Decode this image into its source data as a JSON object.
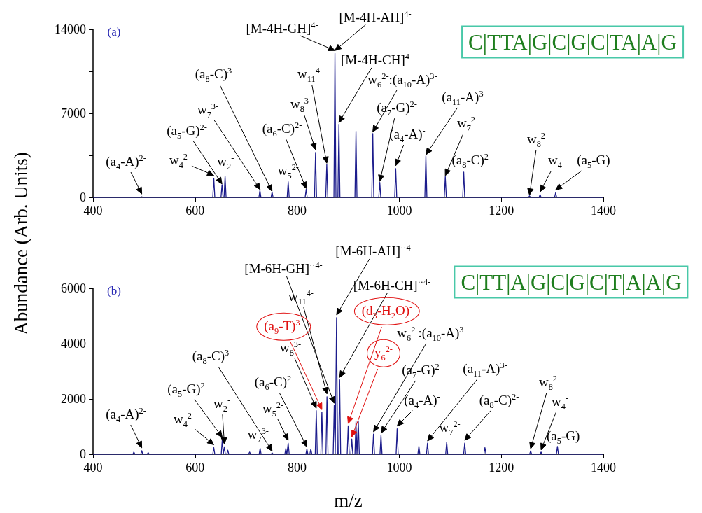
{
  "chart_data": [
    {
      "type": "line",
      "title": "(a)",
      "ylabel": "Abundance (Arb. Units)",
      "marker": "none",
      "grid": false,
      "x": [
        400,
        493.5,
        495.5,
        497.5,
        634.6,
        636.6,
        638.6,
        650.7,
        652.7,
        654.7,
        656.7,
        658.7,
        660.7,
        725,
        727,
        729,
        748.8,
        750.8,
        752.8,
        780.4,
        782.4,
        784.4,
        815.6,
        817.6,
        819.6,
        834,
        836,
        838,
        856,
        858,
        860,
        872,
        874,
        876,
        879.8,
        881.8,
        883.8,
        913.2,
        915.2,
        917.2,
        946.2,
        948.2,
        950.2,
        959.9,
        961.9,
        963.9,
        991.1,
        993.1,
        995.1,
        1050.2,
        1052.2,
        1054.2,
        1088.3,
        1090.3,
        1092.3,
        1124.4,
        1126.4,
        1128.4,
        1253.3,
        1255.3,
        1257.3,
        1274,
        1276,
        1278,
        1304.5,
        1306.5,
        1308.5,
        1400
      ],
      "series": [
        {
          "color": "#1c1c8c",
          "values": [
            0,
            0,
            50,
            0,
            0,
            1600,
            0,
            0,
            1050,
            0,
            0,
            1770,
            0,
            0,
            580,
            0,
            0,
            440,
            0,
            0,
            1300,
            0,
            0,
            670,
            0,
            0,
            3740,
            0,
            0,
            2750,
            0,
            0,
            12000,
            0,
            0,
            6090,
            0,
            0,
            5510,
            0,
            0,
            5320,
            0,
            0,
            1250,
            0,
            0,
            2400,
            0,
            0,
            3460,
            0,
            0,
            1730,
            0,
            0,
            2110,
            0,
            0,
            130,
            0,
            0,
            230,
            0,
            0,
            390,
            0,
            0
          ]
        }
      ],
      "xlim": [
        400,
        1400
      ],
      "xticks": [
        400,
        600,
        800,
        1000,
        1200,
        1400
      ],
      "ylim": [
        0,
        14000
      ],
      "yticks": [
        0,
        {
          "value": 3500,
          "label": null
        },
        7000,
        {
          "value": 10500,
          "label": null
        },
        14000
      ],
      "annotations": [
        {
          "text": "(a$_{4}$-A)$^{2-}$",
          "x": 495.5,
          "y": 50
        },
        {
          "text": "w$_{4}$$^{2-}$",
          "x": 636.6,
          "y": 1600
        },
        "(a$_{5}$-G)$^{2-}$",
        {
          "text": "w$_{2}$$^{-}$",
          "x": 658.7,
          "y": 1770
        },
        "w$_{7}$$^{3-}$",
        "(a$_{8}$-C)$^{3-}$",
        {
          "text": "w$_{5}$$^{2-}$",
          "x": 782.4,
          "y": 1300
        },
        "(a$_{6}$-C)$^{2-}$",
        {
          "text": "w$_{8}$$^{3-}$",
          "x": 836,
          "y": 3740
        },
        "w$_{11}$$^{4-}$",
        {
          "text": "[M-4H-GH]$^{4-}$",
          "x": 874,
          "y": 12000
        },
        {
          "text": "[M-4H-AH]$^{4-}$",
          "x": 874,
          "y": 12000
        },
        "[M-4H-CH]$^{4-}$",
        "w$_{6}$$^{2-}$:(a$_{10}$-A)$^{3-}$",
        "(a$_{7}$-G)$^{2-}$",
        {
          "text": "(a$_{4}$-A)$^{-}$",
          "x": 993.1,
          "y": 2400
        },
        "(a$_{11}$-A)$^{3-}$",
        "w$_{7}$$^{2-}$",
        {
          "text": "(a$_{8}$-C)$^{2-}$",
          "x": 1126.4,
          "y": 2110
        },
        "w$_{8}$$^{2-}$",
        {
          "text": "w$_{4}$$^{-}$",
          "x": 1276,
          "y": 230
        },
        {
          "text": "(a$_{5}$-G)$^{-}$",
          "x": 1306.5,
          "y": 390
        },
        "C|TTA|G|C|G|C|TA|A|G"
      ]
    },
    {
      "type": "line",
      "title": "(b)",
      "xlabel": "m/z",
      "marker": "none",
      "grid": false,
      "x": [
        400,
        478,
        480,
        482,
        493.5,
        495.5,
        497.5,
        506,
        508,
        510,
        634.6,
        636.6,
        638.6,
        651.2,
        653.2,
        655.2,
        655.3,
        657.3,
        659.3,
        662,
        664,
        666,
        704.8,
        706.8,
        708.8,
        725.4,
        727.4,
        729.4,
        749,
        751,
        753,
        775.8,
        777.8,
        779.8,
        780.4,
        782.4,
        784.4,
        817,
        819,
        821,
        824.8,
        826.8,
        828.8,
        835.4,
        837.4,
        839.4,
        846.4,
        848.4,
        850.4,
        856.4,
        858.4,
        860.4,
        870.6,
        872.6,
        874.6,
        875.2,
        877.2,
        879.2,
        881.2,
        883.2,
        885.2,
        898,
        900,
        902,
        905,
        907,
        909,
        913.2,
        915.2,
        917.2,
        917.8,
        919.8,
        921.8,
        947.6,
        949.6,
        951.6,
        962.3,
        964.3,
        966.3,
        993.9,
        995.9,
        997.9,
        1036.5,
        1038.5,
        1040.5,
        1053.4,
        1055.4,
        1057.4,
        1091,
        1093,
        1095,
        1126.3,
        1128.3,
        1130.3,
        1166,
        1168,
        1170,
        1255.5,
        1257.5,
        1259.5,
        1276,
        1278,
        1280,
        1308,
        1310,
        1312,
        1400
      ],
      "series": [
        {
          "color": "#1c1c8c",
          "values": [
            0,
            0,
            80,
            0,
            0,
            130,
            0,
            0,
            60,
            0,
            0,
            240,
            0,
            0,
            530,
            0,
            0,
            270,
            0,
            0,
            150,
            0,
            0,
            80,
            0,
            0,
            210,
            0,
            0,
            50,
            0,
            0,
            210,
            0,
            0,
            400,
            0,
            0,
            190,
            0,
            0,
            190,
            0,
            0,
            1580,
            0,
            0,
            1530,
            0,
            0,
            2080,
            0,
            0,
            1760,
            0,
            0,
            4940,
            0,
            0,
            2690,
            0,
            0,
            1030,
            0,
            0,
            550,
            0,
            0,
            1180,
            0,
            0,
            1180,
            0,
            0,
            730,
            0,
            0,
            690,
            0,
            0,
            920,
            0,
            0,
            290,
            0,
            0,
            400,
            0,
            0,
            440,
            0,
            0,
            400,
            0,
            0,
            240,
            0,
            0,
            120,
            0,
            0,
            80,
            0,
            0,
            280,
            0,
            0
          ]
        }
      ],
      "xlim": [
        400,
        1400
      ],
      "xticks": [
        400,
        600,
        800,
        1000,
        1200,
        1400
      ],
      "ylim": [
        0,
        6000
      ],
      "yticks": [
        0,
        2000,
        4000,
        6000
      ],
      "annotations": [
        {
          "text": "(a$_{4}$-A)$^{2-}$",
          "x": 495.5,
          "y": 130
        },
        {
          "text": "w$_{4}$$^{2-}$",
          "x": 636.6,
          "y": 240
        },
        "(a$_{5}$-G)$^{2-}$",
        {
          "text": "w$_{2}$$^{-}$",
          "x": 657.3,
          "y": 270
        },
        {
          "text": "w$_{7}$$^{3-}$",
          "x": 727.4,
          "y": 210
        },
        "(a$_{8}$-C)$^{3-}$",
        {
          "text": "w$_{5}$$^{2-}$",
          "x": 782.4,
          "y": 400
        },
        "(a$_{6}$-C)$^{2-}$",
        "w$_{8}$$^{3-}$",
        "(a$_{9}$-T)$^{3-}$",
        {
          "text": "w$_{11}$$^{4-}$",
          "x": 858.4,
          "y": 2080
        },
        "[M-6H-GH]$^{··4-}$",
        "[M-6H-AH]$^{··4-}$",
        "[M-6H-CH]$^{··4-}$",
        "(d$_{3}$-H$_{2}$O)$^{-}$",
        "y$_{6}$$^{2-}$",
        "w$_{6}$$^{2-}$:(a$_{10}$-A)$^{3-}$",
        "(a$_{7}$-G)$^{2-}$",
        {
          "text": "(a$_{4}$-A)$^{-}$",
          "x": 995.9,
          "y": 920
        },
        "(a$_{11}$-A)$^{3-}$",
        {
          "text": "w$_{7}$$^{2-}$",
          "x": 1093,
          "y": 440
        },
        {
          "text": "(a$_{8}$-C)$^{2-}$",
          "x": 1128.3,
          "y": 400
        },
        "w$_{8}$$^{2-}$",
        "w$_{4}$$^{-}$",
        {
          "text": "(a$_{5}$-G)$^{-}$",
          "x": 1310,
          "y": 280
        },
        "C|TT|A|G|C|G|C|T|A|A|G"
      ]
    }
  ]
}
